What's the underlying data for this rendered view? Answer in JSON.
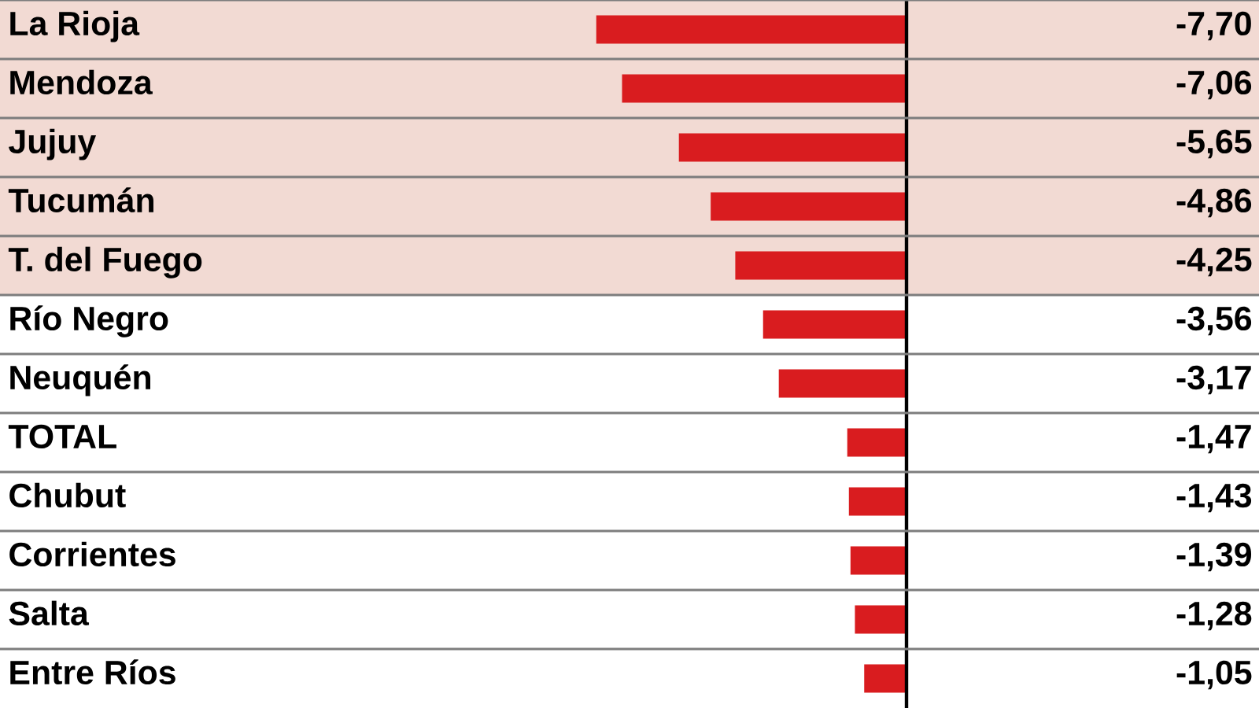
{
  "chart_data": {
    "type": "bar",
    "orientation": "horizontal",
    "categories": [
      "La Rioja",
      "Mendoza",
      "Jujuy",
      "Tucumán",
      "T. del Fuego",
      "Río Negro",
      "Neuquén",
      "TOTAL",
      "Chubut",
      "Corrientes",
      "Salta",
      "Entre Ríos"
    ],
    "values": [
      -7.7,
      -7.06,
      -5.65,
      -4.86,
      -4.25,
      -3.56,
      -3.17,
      -1.47,
      -1.43,
      -1.39,
      -1.28,
      -1.05
    ],
    "value_labels": [
      "-7,70",
      "-7,06",
      "-5,65",
      "-4,86",
      "-4,25",
      "-3,56",
      "-3,17",
      "-1,47",
      "-1,43",
      "-1,39",
      "-1,28",
      "-1,05"
    ],
    "color": "#d91c1f",
    "xlim": [
      -22.5,
      8.75
    ],
    "tick_labels": "y",
    "grid": "y",
    "bands": [
      {
        "axis": "y",
        "from": "La Rioja",
        "to": "T. del Fuego",
        "color": "#f2dad3"
      }
    ]
  }
}
